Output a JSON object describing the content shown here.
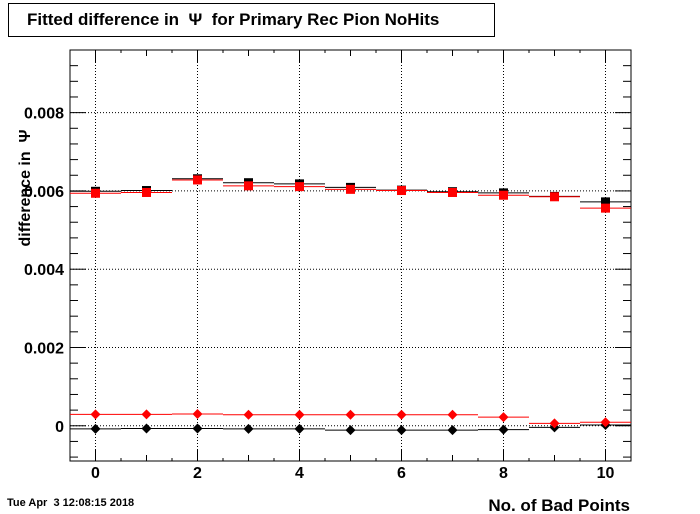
{
  "chart_data": {
    "type": "scatter",
    "title": "Fitted difference in  Ψ  for Primary Rec Pion NoHits",
    "xlabel": "No. of Bad Points",
    "ylabel": "difference in  Ψ",
    "xlim": [
      -0.5,
      10.5
    ],
    "ylim": [
      -0.0009,
      0.0096
    ],
    "xticks": [
      "0",
      "2",
      "4",
      "6",
      "8",
      "10"
    ],
    "yticks": [
      "0",
      "0.002",
      "0.004",
      "0.006",
      "0.008"
    ],
    "grid": true,
    "x": [
      0,
      1,
      2,
      3,
      4,
      5,
      6,
      7,
      8,
      9,
      10
    ],
    "series": [
      {
        "color": "#000000",
        "marker": "square",
        "values": [
          0.00599,
          0.00601,
          0.00631,
          0.00621,
          0.00618,
          0.00609,
          0.00602,
          0.00598,
          0.00595,
          0.00586,
          0.00572
        ]
      },
      {
        "color": "#ff0000",
        "marker": "square",
        "values": [
          0.00594,
          0.00596,
          0.00628,
          0.00613,
          0.00611,
          0.00604,
          0.00601,
          0.00596,
          0.00589,
          0.00585,
          0.00556
        ]
      },
      {
        "color": "#000000",
        "marker": "diamond",
        "values": [
          -8e-05,
          -7e-05,
          -7e-05,
          -8e-05,
          -8e-05,
          -0.00011,
          -0.00011,
          -0.00011,
          -0.0001,
          -4e-05,
          2e-05
        ]
      },
      {
        "color": "#ff0000",
        "marker": "diamond",
        "values": [
          0.00029,
          0.00029,
          0.0003,
          0.00028,
          0.00028,
          0.00028,
          0.00028,
          0.00028,
          0.00022,
          6e-05,
          9e-05
        ]
      }
    ]
  },
  "timestamp": "Tue Apr  3 12:08:15 2018"
}
